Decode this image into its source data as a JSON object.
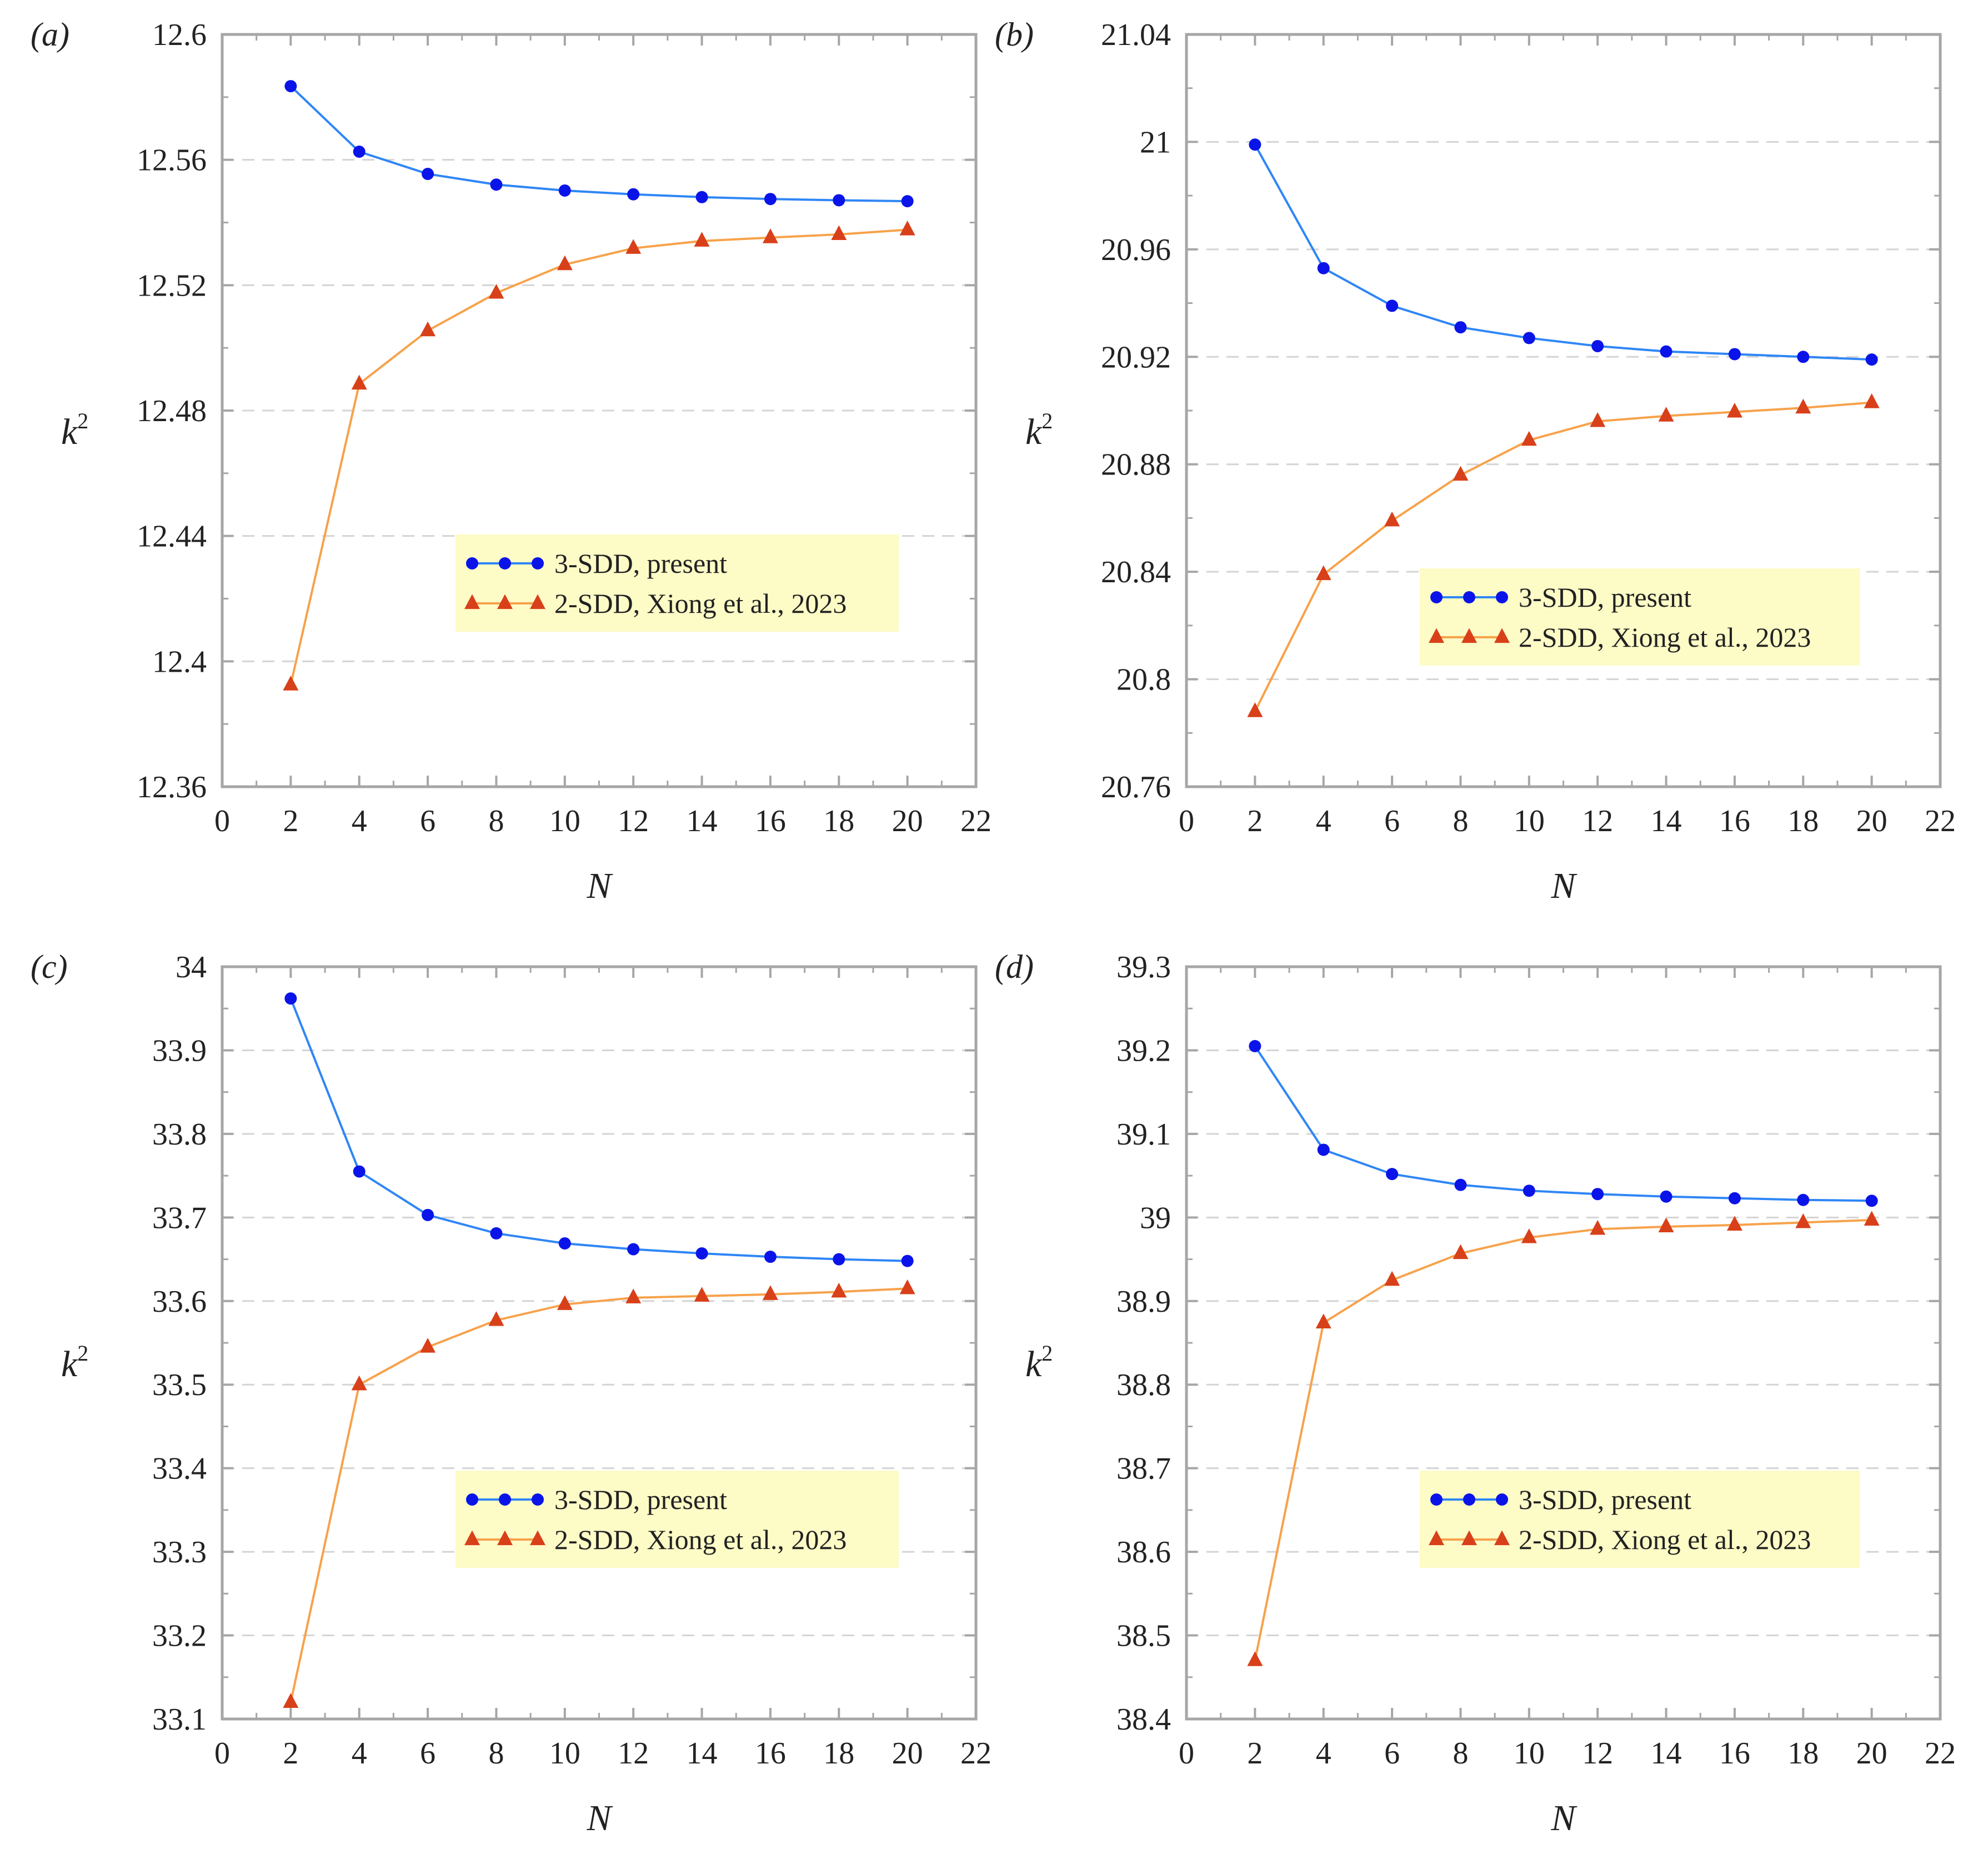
{
  "figure": {
    "panels": [
      "a",
      "b",
      "c",
      "d"
    ]
  },
  "colors": {
    "series_present_line": "#2f86f6",
    "series_present_marker": "#0a14e8",
    "series_xiong_line": "#f7a24b",
    "series_xiong_marker": "#d8401a",
    "legend_bg": "#fdfbc6",
    "axis": "#a6a6a6",
    "grid": "#d4d4d4"
  },
  "chart_data": [
    {
      "panel_label": "(a)",
      "type": "line",
      "xlabel": "N",
      "ylabel_main": "k",
      "ylabel_sup": "2",
      "xlim": [
        0,
        22
      ],
      "ylim": [
        12.36,
        12.6
      ],
      "xticks": [
        "0",
        "2",
        "4",
        "6",
        "8",
        "10",
        "12",
        "14",
        "16",
        "18",
        "20",
        "22"
      ],
      "yticks": [
        "12.36",
        "12.4",
        "12.44",
        "12.48",
        "12.52",
        "12.56",
        "12.6"
      ],
      "grid": "horizontal dashed",
      "legend_position": "center-right",
      "x": [
        2,
        4,
        6,
        8,
        10,
        12,
        14,
        16,
        18,
        20
      ],
      "series": [
        {
          "name": "3-SDD, present",
          "marker": "circle",
          "values": [
            12.5835,
            12.5626,
            12.5555,
            12.5521,
            12.5502,
            12.549,
            12.5481,
            12.5475,
            12.5471,
            12.5468
          ]
        },
        {
          "name": "2-SDD, Xiong et al., 2023",
          "marker": "triangle",
          "values": [
            12.3925,
            12.4885,
            12.5055,
            12.5175,
            12.5266,
            12.5318,
            12.5341,
            12.5352,
            12.5362,
            12.5377
          ]
        }
      ]
    },
    {
      "panel_label": "(b)",
      "type": "line",
      "xlabel": "N",
      "ylabel_main": "k",
      "ylabel_sup": "2",
      "xlim": [
        0,
        22
      ],
      "ylim": [
        20.76,
        21.04
      ],
      "xticks": [
        "0",
        "2",
        "4",
        "6",
        "8",
        "10",
        "12",
        "14",
        "16",
        "18",
        "20",
        "22"
      ],
      "yticks": [
        "20.76",
        "20.8",
        "20.84",
        "20.88",
        "20.92",
        "20.96",
        "21",
        "21.04"
      ],
      "grid": "horizontal dashed",
      "legend_position": "lower-right",
      "x": [
        2,
        4,
        6,
        8,
        10,
        12,
        14,
        16,
        18,
        20
      ],
      "series": [
        {
          "name": "3-SDD, present",
          "marker": "circle",
          "values": [
            20.999,
            20.953,
            20.939,
            20.931,
            20.927,
            20.924,
            20.922,
            20.921,
            20.92,
            20.919
          ]
        },
        {
          "name": "2-SDD, Xiong et al., 2023",
          "marker": "triangle",
          "values": [
            20.788,
            20.839,
            20.859,
            20.876,
            20.889,
            20.896,
            20.898,
            20.8995,
            20.901,
            20.903
          ]
        }
      ]
    },
    {
      "panel_label": "(c)",
      "type": "line",
      "xlabel": "N",
      "ylabel_main": "k",
      "ylabel_sup": "2",
      "xlim": [
        0,
        22
      ],
      "ylim": [
        33.1,
        34
      ],
      "xticks": [
        "0",
        "2",
        "4",
        "6",
        "8",
        "10",
        "12",
        "14",
        "16",
        "18",
        "20",
        "22"
      ],
      "yticks": [
        "33.1",
        "33.2",
        "33.3",
        "33.4",
        "33.5",
        "33.6",
        "33.7",
        "33.8",
        "33.9",
        "34"
      ],
      "grid": "horizontal dashed",
      "legend_position": "center-right",
      "x": [
        2,
        4,
        6,
        8,
        10,
        12,
        14,
        16,
        18,
        20
      ],
      "series": [
        {
          "name": "3-SDD, present",
          "marker": "circle",
          "values": [
            33.962,
            33.755,
            33.703,
            33.681,
            33.669,
            33.662,
            33.657,
            33.653,
            33.65,
            33.648
          ]
        },
        {
          "name": "2-SDD, Xiong et al., 2023",
          "marker": "triangle",
          "values": [
            33.12,
            33.5,
            33.545,
            33.577,
            33.596,
            33.604,
            33.606,
            33.608,
            33.611,
            33.615
          ]
        }
      ]
    },
    {
      "panel_label": "(d)",
      "type": "line",
      "xlabel": "N",
      "ylabel_main": "k",
      "ylabel_sup": "2",
      "xlim": [
        0,
        22
      ],
      "ylim": [
        38.4,
        39.3
      ],
      "xticks": [
        "0",
        "2",
        "4",
        "6",
        "8",
        "10",
        "12",
        "14",
        "16",
        "18",
        "20",
        "22"
      ],
      "yticks": [
        "38.4",
        "38.5",
        "38.6",
        "38.7",
        "38.8",
        "38.9",
        "39",
        "39.1",
        "39.2",
        "39.3"
      ],
      "grid": "horizontal dashed",
      "legend_position": "lower-right",
      "x": [
        2,
        4,
        6,
        8,
        10,
        12,
        14,
        16,
        18,
        20
      ],
      "series": [
        {
          "name": "3-SDD, present",
          "marker": "circle",
          "values": [
            39.205,
            39.081,
            39.052,
            39.039,
            39.032,
            39.028,
            39.025,
            39.023,
            39.021,
            39.02
          ]
        },
        {
          "name": "2-SDD, Xiong et al., 2023",
          "marker": "triangle",
          "values": [
            38.47,
            38.874,
            38.925,
            38.957,
            38.976,
            38.986,
            38.989,
            38.991,
            38.994,
            38.997
          ]
        }
      ]
    }
  ]
}
